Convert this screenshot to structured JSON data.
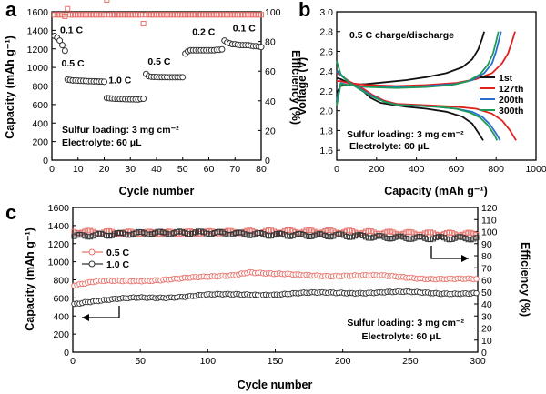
{
  "chart_data": [
    {
      "panel": "a",
      "type": "scatter",
      "xlabel": "Cycle number",
      "ylabel": "Capacity (mAh g⁻¹)",
      "y2label": "Efficiency (%)",
      "xlim": [
        0,
        80
      ],
      "ylim": [
        0,
        1600
      ],
      "y2lim": [
        0,
        100
      ],
      "xticks": [
        0,
        10,
        20,
        30,
        40,
        50,
        60,
        70,
        80
      ],
      "yticks": [
        0,
        200,
        400,
        600,
        800,
        1000,
        1200,
        1400,
        1600
      ],
      "y2ticks": [
        0,
        20,
        40,
        60,
        80,
        100
      ],
      "annotations": [
        "Sulfur loading: 3 mg cm⁻²",
        "Electrolyte: 60 μL"
      ],
      "rate_labels": [
        {
          "text": "0.1 C",
          "x": 7.5,
          "y": 1370
        },
        {
          "text": "0.5 C",
          "x": 8,
          "y": 1010
        },
        {
          "text": "1.0 C",
          "x": 26,
          "y": 830
        },
        {
          "text": "0.5 C",
          "x": 41,
          "y": 1030
        },
        {
          "text": "0.2 C",
          "x": 58,
          "y": 1350
        },
        {
          "text": "0.1 C",
          "x": 73.5,
          "y": 1390
        }
      ],
      "capacity_segments": [
        {
          "rate": "0.1 C",
          "x": [
            1,
            2,
            3,
            4,
            5
          ],
          "y": [
            1340,
            1320,
            1290,
            1240,
            1180
          ]
        },
        {
          "rate": "0.5 C",
          "x": [
            6,
            7,
            8,
            9,
            10,
            11,
            12,
            13,
            14,
            15,
            16,
            17,
            18,
            19,
            20
          ],
          "y": [
            870,
            865,
            860,
            860,
            858,
            856,
            855,
            854,
            852,
            852,
            850,
            850,
            848,
            848,
            846
          ]
        },
        {
          "rate": "1.0 C",
          "x": [
            21,
            22,
            23,
            24,
            25,
            26,
            27,
            28,
            29,
            30,
            31,
            32,
            33,
            34,
            35
          ],
          "y": [
            670,
            668,
            665,
            662,
            662,
            660,
            660,
            658,
            658,
            656,
            656,
            655,
            654,
            660,
            662
          ]
        },
        {
          "rate": "0.5 C",
          "x": [
            36,
            37,
            38,
            39,
            40,
            41,
            42,
            43,
            44,
            45,
            46,
            47,
            48,
            49,
            50
          ],
          "y": [
            930,
            905,
            900,
            898,
            898,
            896,
            896,
            896,
            895,
            895,
            895,
            895,
            895,
            895,
            895
          ]
        },
        {
          "rate": "0.2 C",
          "x": [
            51,
            52,
            53,
            54,
            55,
            56,
            57,
            58,
            59,
            60,
            61,
            62,
            63,
            64,
            65
          ],
          "y": [
            1150,
            1175,
            1185,
            1185,
            1185,
            1185,
            1185,
            1185,
            1185,
            1185,
            1185,
            1185,
            1190,
            1190,
            1195
          ]
        },
        {
          "rate": "0.1 C",
          "x": [
            66,
            67,
            68,
            69,
            70,
            71,
            72,
            73,
            74,
            75,
            76,
            77,
            78,
            79,
            80
          ],
          "y": [
            1290,
            1270,
            1260,
            1250,
            1250,
            1245,
            1240,
            1240,
            1240,
            1240,
            1235,
            1230,
            1230,
            1225,
            1220
          ]
        }
      ],
      "efficiency": {
        "x": [
          1,
          2,
          3,
          4,
          5,
          6,
          7,
          8,
          9,
          10,
          11,
          12,
          13,
          14,
          15,
          16,
          17,
          18,
          19,
          20,
          21,
          22,
          23,
          24,
          25,
          26,
          27,
          28,
          29,
          30,
          31,
          32,
          33,
          34,
          35,
          36,
          37,
          38,
          39,
          40,
          41,
          42,
          43,
          44,
          45,
          46,
          47,
          48,
          49,
          50,
          51,
          52,
          53,
          54,
          55,
          56,
          57,
          58,
          59,
          60,
          61,
          62,
          63,
          64,
          65,
          66,
          67,
          68,
          69,
          70,
          71,
          72,
          73,
          74,
          75,
          76,
          77,
          78,
          79,
          80
        ],
        "y": [
          98,
          98,
          98,
          98,
          97,
          102,
          98,
          98,
          98,
          98,
          98,
          98,
          98,
          98,
          98,
          98,
          98,
          98,
          98,
          98,
          108,
          98,
          98,
          98,
          98,
          98,
          98,
          98,
          98,
          98,
          98,
          98,
          98,
          98,
          92,
          98,
          98,
          98,
          98,
          98,
          98,
          98,
          98,
          98,
          98,
          98,
          98,
          98,
          98,
          98,
          98,
          98,
          98,
          98,
          98,
          98,
          98,
          98,
          98,
          98,
          98,
          98,
          98,
          98,
          98,
          98,
          98,
          98,
          98,
          98,
          98,
          98,
          98,
          98,
          98,
          98,
          98,
          98,
          98,
          98
        ]
      },
      "colors": {
        "capacity": "#333333",
        "efficiency": "#e8736c"
      }
    },
    {
      "panel": "b",
      "type": "line",
      "xlabel": "Capacity (mAh g⁻¹)",
      "ylabel": "Voltage (V)",
      "xlim": [
        0,
        1000
      ],
      "ylim": [
        1.5,
        3.0
      ],
      "xticks": [
        0,
        200,
        400,
        600,
        800,
        1000
      ],
      "yticks": [
        1.6,
        1.8,
        2.0,
        2.2,
        2.4,
        2.6,
        2.8,
        3.0
      ],
      "title": "0.5 C charge/discharge",
      "annotations": [
        "Sulfur loading: 3 mg cm⁻²",
        "Electrolyte: 60 μL"
      ],
      "legend_position": "right",
      "series": [
        {
          "name": "1st",
          "color": "#111111",
          "charge": {
            "x": [
              0,
              20,
              60,
              150,
              250,
              350,
              450,
              550,
              630,
              680,
              710,
              730,
              740
            ],
            "y": [
              2.18,
              2.25,
              2.26,
              2.27,
              2.29,
              2.31,
              2.34,
              2.38,
              2.44,
              2.52,
              2.62,
              2.73,
              2.8
            ]
          },
          "discharge": {
            "x": [
              0,
              20,
              60,
              120,
              170,
              220,
              280,
              350,
              450,
              550,
              630,
              680,
              710,
              735
            ],
            "y": [
              2.33,
              2.32,
              2.28,
              2.22,
              2.13,
              2.08,
              2.06,
              2.04,
              2.02,
              1.99,
              1.94,
              1.87,
              1.78,
              1.7
            ]
          }
        },
        {
          "name": "127th",
          "color": "#e0201c",
          "charge": {
            "x": [
              0,
              20,
              60,
              150,
              300,
              450,
              600,
              700,
              780,
              830,
              860,
              880,
              895
            ],
            "y": [
              2.3,
              2.3,
              2.28,
              2.26,
              2.25,
              2.26,
              2.28,
              2.32,
              2.38,
              2.48,
              2.58,
              2.7,
              2.8
            ]
          },
          "discharge": {
            "x": [
              0,
              20,
              60,
              120,
              180,
              240,
              300,
              400,
              500,
              600,
              700,
              780,
              830,
              870,
              900
            ],
            "y": [
              2.38,
              2.36,
              2.3,
              2.24,
              2.16,
              2.1,
              2.07,
              2.06,
              2.05,
              2.04,
              2.02,
              1.97,
              1.9,
              1.8,
              1.7
            ]
          }
        },
        {
          "name": "200th",
          "color": "#2a6fc9",
          "charge": {
            "x": [
              0,
              20,
              60,
              150,
              300,
              450,
              600,
              680,
              740,
              780,
              800,
              815,
              825
            ],
            "y": [
              2.1,
              2.28,
              2.26,
              2.24,
              2.24,
              2.25,
              2.27,
              2.31,
              2.38,
              2.48,
              2.6,
              2.72,
              2.8
            ]
          },
          "discharge": {
            "x": [
              0,
              20,
              60,
              120,
              180,
              240,
              300,
              400,
              500,
              600,
              680,
              730,
              770,
              800,
              820
            ],
            "y": [
              2.4,
              2.36,
              2.29,
              2.22,
              2.15,
              2.09,
              2.06,
              2.05,
              2.04,
              2.02,
              1.99,
              1.94,
              1.86,
              1.77,
              1.7
            ]
          }
        },
        {
          "name": "300th",
          "color": "#1e9a5a",
          "charge": {
            "x": [
              0,
              20,
              60,
              150,
              300,
              450,
              580,
              660,
              720,
              760,
              785,
              800,
              812
            ],
            "y": [
              2.05,
              2.27,
              2.26,
              2.24,
              2.23,
              2.24,
              2.26,
              2.3,
              2.37,
              2.47,
              2.58,
              2.7,
              2.8
            ]
          },
          "discharge": {
            "x": [
              0,
              20,
              60,
              120,
              180,
              240,
              300,
              400,
              500,
              600,
              670,
              720,
              760,
              790,
              805
            ],
            "y": [
              2.5,
              2.37,
              2.29,
              2.21,
              2.14,
              2.09,
              2.06,
              2.05,
              2.04,
              2.02,
              1.98,
              1.93,
              1.85,
              1.76,
              1.7
            ]
          }
        }
      ]
    },
    {
      "panel": "c",
      "type": "scatter",
      "xlabel": "Cycle number",
      "ylabel": "Capacity (mAh g⁻¹)",
      "y2label": "Efficiency (%)",
      "xlim": [
        0,
        300
      ],
      "ylim": [
        0,
        1600
      ],
      "y2lim": [
        0,
        120
      ],
      "xticks": [
        0,
        50,
        100,
        150,
        200,
        250,
        300
      ],
      "yticks": [
        0,
        200,
        400,
        600,
        800,
        1000,
        1200,
        1400,
        1600
      ],
      "y2ticks": [
        0,
        10,
        20,
        30,
        40,
        50,
        60,
        70,
        80,
        90,
        100,
        110,
        120
      ],
      "annotations": [
        "Sulfur loading: 3 mg cm⁻²",
        "Electrolyte: 60 μL"
      ],
      "legend_position": "left",
      "series": [
        {
          "name": "0.5 C",
          "color": "#e8736c",
          "capacity_anchors": {
            "x": [
              1,
              10,
              20,
              40,
              60,
              80,
              100,
              120,
              130,
              150,
              170,
              200,
              230,
              260,
              300
            ],
            "y": [
              740,
              760,
              780,
              790,
              800,
              810,
              830,
              860,
              890,
              860,
              850,
              850,
              840,
              820,
              800
            ]
          },
          "efficiency_anchors": {
            "x": [
              1,
              50,
              100,
              150,
              200,
              250,
              300
            ],
            "y": [
              100,
              99.5,
              99.5,
              99.5,
              99.5,
              99,
              98.5
            ]
          }
        },
        {
          "name": "1.0 C",
          "color": "#333333",
          "capacity_anchors": {
            "x": [
              1,
              10,
              30,
              50,
              70,
              100,
              130,
              150,
              200,
              250,
              300
            ],
            "y": [
              540,
              560,
              580,
              600,
              610,
              630,
              640,
              640,
              660,
              660,
              650
            ]
          },
          "efficiency_anchors": {
            "x": [
              1,
              50,
              100,
              150,
              200,
              230,
              260,
              300
            ],
            "y": [
              96,
              98,
              99,
              98,
              97,
              95,
              94,
              94
            ]
          }
        }
      ]
    }
  ]
}
